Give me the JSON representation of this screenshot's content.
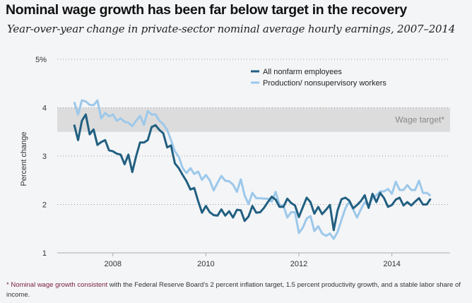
{
  "header": {
    "title": "Nominal wage growth has been far below target in the recovery",
    "subtitle": "Year-over-year change in private-sector nominal average hourly earnings, 2007–2014"
  },
  "footnote": {
    "highlight": "* Nominal wage growth consistent",
    "rest": " with the Federal Reserve Board's 2 percent inflation target, 1.5 percent productivity growth, and a stable labor share of income."
  },
  "colors": {
    "all_nonfarm": "#215f80",
    "production": "#9cc8ea",
    "band": "#dcdcdc",
    "footnote_highlight": "#7a2140"
  },
  "chart_data": {
    "type": "line",
    "title": "Nominal wage growth has been far below target in the recovery",
    "subtitle": "Year-over-year change in private-sector nominal average hourly earnings, 2007–2014",
    "xlabel": "",
    "ylabel": "Percent change",
    "xlim": [
      2007,
      2015
    ],
    "ylim": [
      1,
      5
    ],
    "xticks": [
      2008,
      2010,
      2012,
      2014
    ],
    "xtick_labels": [
      "2008",
      "2010",
      "2012",
      "2014"
    ],
    "yticks": [
      1,
      2,
      3,
      4,
      5
    ],
    "ytick_labels": [
      "1",
      "2",
      "3",
      "4",
      "5%"
    ],
    "grid": "horizontal dotted",
    "legend_position": "top-center",
    "band": {
      "label": "Wage target*",
      "from": 3.5,
      "to": 4.0
    },
    "x_start": "2007-03",
    "x_end": "2014-11",
    "x_step": "monthly",
    "series": [
      {
        "name": "All nonfarm employees",
        "values": [
          3.65,
          3.33,
          3.73,
          3.86,
          3.45,
          3.55,
          3.23,
          3.29,
          3.33,
          3.12,
          3.1,
          3.05,
          3.03,
          2.83,
          3.03,
          2.67,
          3.0,
          3.28,
          3.28,
          3.33,
          3.6,
          3.64,
          3.54,
          3.47,
          3.18,
          3.22,
          2.85,
          2.75,
          2.61,
          2.48,
          2.31,
          2.34,
          2.07,
          1.83,
          1.97,
          1.84,
          1.78,
          1.77,
          1.9,
          1.77,
          1.86,
          1.73,
          1.89,
          1.88,
          1.66,
          1.75,
          1.97,
          1.83,
          1.84,
          1.93,
          2.05,
          2.16,
          2.1,
          1.95,
          1.95,
          2.12,
          2.03,
          1.98,
          1.74,
          1.94,
          2.14,
          2.05,
          1.81,
          1.95,
          1.8,
          1.89,
          1.99,
          1.47,
          1.88,
          2.11,
          2.14,
          2.08,
          1.92,
          1.99,
          2.07,
          2.19,
          1.93,
          2.22,
          2.05,
          2.24,
          2.13,
          1.95,
          1.99,
          2.1,
          2.14,
          1.98,
          2.05,
          1.98,
          2.06,
          2.13,
          2.0,
          2.0,
          2.12
        ]
      },
      {
        "name": "Production/ nonsupervisory workers",
        "values": [
          4.12,
          3.86,
          4.15,
          4.13,
          4.06,
          4.05,
          4.15,
          3.78,
          3.89,
          3.82,
          3.86,
          3.73,
          3.78,
          3.71,
          3.69,
          3.62,
          3.73,
          3.83,
          3.65,
          3.93,
          3.86,
          3.86,
          3.73,
          3.66,
          3.54,
          3.33,
          3.1,
          2.99,
          2.75,
          2.65,
          2.75,
          2.63,
          2.68,
          2.51,
          2.61,
          2.5,
          2.29,
          2.45,
          2.59,
          2.49,
          2.48,
          2.41,
          2.26,
          2.52,
          2.19,
          2.01,
          2.24,
          2.13,
          2.13,
          2.12,
          2.12,
          2.06,
          2.26,
          1.99,
          1.98,
          1.73,
          1.84,
          1.84,
          1.41,
          1.52,
          1.71,
          1.76,
          1.45,
          1.55,
          1.4,
          1.35,
          1.4,
          1.29,
          1.43,
          1.68,
          1.92,
          2.06,
          1.9,
          1.73,
          1.9,
          2.05,
          1.98,
          2.13,
          2.19,
          2.27,
          2.27,
          2.32,
          2.22,
          2.47,
          2.3,
          2.3,
          2.4,
          2.3,
          2.3,
          2.49,
          2.24,
          2.24,
          2.18
        ]
      }
    ]
  }
}
